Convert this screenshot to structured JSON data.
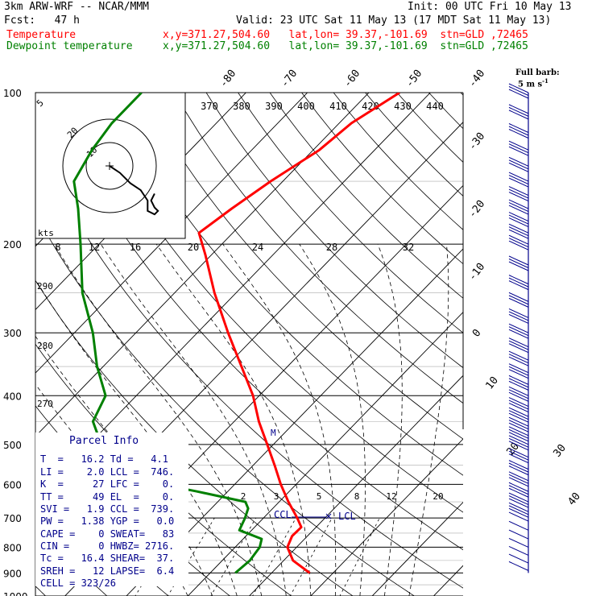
{
  "header": {
    "model": "3km ARW-WRF -- NCAR/MMM",
    "init": "Init: 00 UTC Fri 10 May 13",
    "fcst": "Fcst:   47 h",
    "valid": "Valid: 23 UTC Sat 11 May 13 (17 MDT Sat 11 May 13)",
    "temp_label": "Temperature",
    "temp_info": "x,y=371.27,504.60   lat,lon= 39.37,-101.69  stn=GLD ,72465",
    "dew_label": "Dewpoint temperature",
    "dew_info": "x,y=371.27,504.60   lat,lon= 39.37,-101.69  stn=GLD ,72465"
  },
  "barb_legend": {
    "line1": "Full barb:",
    "line2": "5 m s",
    "sup": "-1"
  },
  "parcel": {
    "title": "Parcel Info",
    "rows": [
      "T  =   16.2 Td =   4.1",
      "LI =    2.0 LCL =  746.",
      "K  =     27 LFC =    0.",
      "TT =     49 EL  =    0.",
      "SVI =   1.9 CCL =  739.",
      "PW =   1.38 YGP =   0.0",
      "CAPE =    0 SWEAT=   83",
      "CIN =     0 HWBZ= 2716.",
      "Tc =   16.4 SHEAR=  37.",
      "SREH =   12 LAPSE=  6.4",
      "CELL = 323/26"
    ]
  },
  "colors": {
    "temperature": "#ff0000",
    "dewpoint": "#008000",
    "barbs": "#00008b",
    "parcel_text": "#00008b"
  },
  "chart_data": {
    "type": "line",
    "title": "",
    "ylabel": "",
    "xlabel": "",
    "pressure_axis": {
      "levels": [
        100,
        200,
        300,
        400,
        500,
        600,
        700,
        800,
        900,
        1000
      ],
      "scale": "log"
    },
    "isotherm_labels": [
      "-80",
      "-70",
      "-60",
      "-50",
      "-40",
      "-30",
      "-20",
      "-10",
      "0",
      "10",
      "20",
      "30",
      "40"
    ],
    "theta_labels": [
      "370",
      "380",
      "390",
      "400",
      "410",
      "420",
      "430",
      "440"
    ],
    "dry_adiabat_labels": [
      "290",
      "280",
      "270"
    ],
    "mixing_ratio_labels": [
      "2",
      "3",
      "5",
      "8",
      "12",
      "20"
    ],
    "annotations": {
      "ccl": "CCL",
      "lcl": "LCL",
      "m": "M"
    },
    "series": [
      {
        "name": "Temperature",
        "points": [
          [
            900,
            16.2
          ],
          [
            850,
            11.5
          ],
          [
            800,
            8.5
          ],
          [
            760,
            7.5
          ],
          [
            730,
            7.6
          ],
          [
            700,
            5.5
          ],
          [
            650,
            1.5
          ],
          [
            600,
            -2.5
          ],
          [
            550,
            -6.5
          ],
          [
            500,
            -11
          ],
          [
            450,
            -16
          ],
          [
            400,
            -21
          ],
          [
            350,
            -27.5
          ],
          [
            300,
            -35
          ],
          [
            250,
            -43.5
          ],
          [
            210,
            -51
          ],
          [
            190,
            -55.5
          ],
          [
            170,
            -54
          ],
          [
            150,
            -52
          ],
          [
            130,
            -49
          ],
          [
            115,
            -48
          ],
          [
            100,
            -45
          ]
        ]
      },
      {
        "name": "Dewpoint temperature",
        "points": [
          [
            900,
            4.1
          ],
          [
            850,
            4.5
          ],
          [
            800,
            4
          ],
          [
            770,
            3
          ],
          [
            740,
            -2
          ],
          [
            700,
            -3
          ],
          [
            670,
            -4
          ],
          [
            650,
            -5.5
          ],
          [
            620,
            -15
          ],
          [
            600,
            -22
          ],
          [
            570,
            -30
          ],
          [
            550,
            -33
          ],
          [
            500,
            -38
          ],
          [
            450,
            -43
          ],
          [
            400,
            -45
          ],
          [
            350,
            -51
          ],
          [
            300,
            -57
          ],
          [
            250,
            -65
          ],
          [
            200,
            -73
          ],
          [
            170,
            -79
          ],
          [
            150,
            -84
          ],
          [
            130,
            -86
          ],
          [
            115,
            -87
          ],
          [
            100,
            -87
          ]
        ]
      }
    ],
    "hodograph": {
      "rings": [
        10,
        20
      ],
      "ring_labels": [
        "10",
        "20"
      ],
      "top_label": "5",
      "outer_label": "5",
      "scale_label": "kts",
      "temp_scale_labels": [
        "8",
        "12",
        "16",
        "20",
        "24",
        "28",
        "32"
      ],
      "path": [
        [
          0,
          0
        ],
        [
          3,
          -2
        ],
        [
          6,
          -5
        ],
        [
          9,
          -7
        ],
        [
          11,
          -10
        ],
        [
          11,
          -13
        ],
        [
          13,
          -14
        ],
        [
          14,
          -13
        ],
        [
          13,
          -12
        ],
        [
          12,
          -10
        ],
        [
          13,
          -8
        ]
      ]
    },
    "wind_barbs": {
      "levels": [
        100,
        110,
        120,
        130,
        140,
        150,
        160,
        170,
        180,
        190,
        200,
        220,
        240,
        260,
        280,
        300,
        320,
        340,
        360,
        380,
        400,
        420,
        440,
        460,
        480,
        500,
        530,
        560,
        590,
        620,
        650,
        680,
        710,
        740,
        770,
        800,
        830,
        860,
        890
      ],
      "speeds_ms": [
        15,
        15,
        15,
        15,
        15,
        15,
        15,
        15,
        15,
        15,
        15,
        15,
        15,
        15,
        15,
        15,
        15,
        15,
        15,
        15,
        15,
        15,
        15,
        15,
        15,
        15,
        15,
        15,
        15,
        15,
        15,
        15,
        5,
        5,
        5,
        5,
        5,
        5,
        5
      ]
    }
  }
}
